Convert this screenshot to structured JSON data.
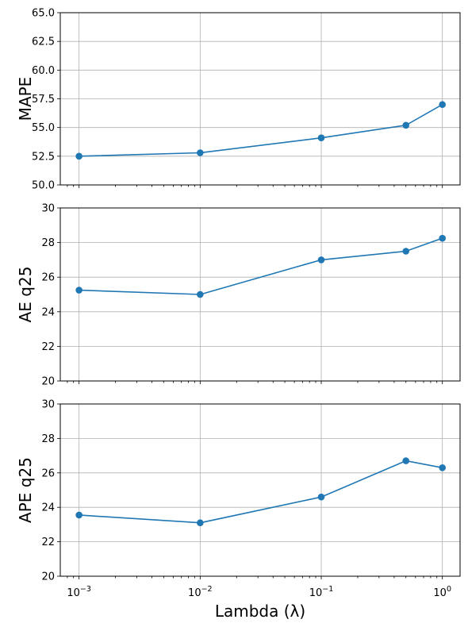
{
  "chart_data": {
    "type": "line",
    "layout": "3 vertically stacked panels sharing a logarithmic x-axis",
    "xlabel": "Lambda (λ)",
    "xscale": "log",
    "xlim": [
      0.0007,
      1.4
    ],
    "xticks": [
      {
        "value": 0.001,
        "base": "10",
        "exp": "−3"
      },
      {
        "value": 0.01,
        "base": "10",
        "exp": "−2"
      },
      {
        "value": 0.1,
        "base": "10",
        "exp": "−1"
      },
      {
        "value": 1,
        "base": "10",
        "exp": "0"
      }
    ],
    "grid": true,
    "legend": "none",
    "color": "#1f77b4",
    "marker": "circle",
    "panels": [
      {
        "ylabel": "MAPE",
        "ylim": [
          50.0,
          65.0
        ],
        "yticks": [
          "50.0",
          "52.5",
          "55.0",
          "57.5",
          "60.0",
          "62.5",
          "65.0"
        ],
        "x": [
          0.001,
          0.01,
          0.1,
          0.5,
          1
        ],
        "y": [
          52.5,
          52.8,
          54.1,
          55.2,
          57.0
        ]
      },
      {
        "ylabel": "AE q25",
        "ylim": [
          20,
          30
        ],
        "yticks": [
          "20",
          "22",
          "24",
          "26",
          "28",
          "30"
        ],
        "x": [
          0.001,
          0.01,
          0.1,
          0.5,
          1
        ],
        "y": [
          25.25,
          25.0,
          27.0,
          27.5,
          28.25
        ]
      },
      {
        "ylabel": "APE q25",
        "ylim": [
          20,
          30
        ],
        "yticks": [
          "20",
          "22",
          "24",
          "26",
          "28",
          "30"
        ],
        "x": [
          0.001,
          0.01,
          0.1,
          0.5,
          1
        ],
        "y": [
          23.55,
          23.1,
          24.6,
          26.7,
          26.3
        ]
      }
    ]
  }
}
